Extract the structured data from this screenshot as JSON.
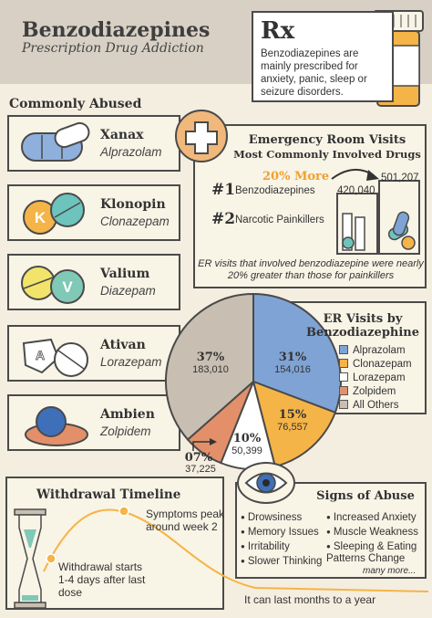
{
  "header": {
    "title": "Benzodiazepines",
    "subtitle": "Prescription Drug Addiction",
    "rx_symbol": "Rx",
    "rx_text": "Benzodiazepines are mainly prescribed for anxiety, panic, sleep or seizure disorders."
  },
  "common": {
    "title": "Commonly Abused",
    "drugs": [
      {
        "name": "Xanax",
        "generic": "Alprazolam"
      },
      {
        "name": "Klonopin",
        "generic": "Clonazepam"
      },
      {
        "name": "Valium",
        "generic": "Diazepam"
      },
      {
        "name": "Ativan",
        "generic": "Lorazepam"
      },
      {
        "name": "Ambien",
        "generic": "Zolpidem"
      }
    ],
    "pill_letters": {
      "klonopin": "K",
      "valium": "V",
      "ativan": "A"
    }
  },
  "er": {
    "title": "Emergency Room Visits",
    "subtitle": "Most Commonly Involved Drugs",
    "more_label": "20% More",
    "rank1": "#1",
    "rank1_label": "Benzodiazepines",
    "rank2": "#2",
    "rank2_label": "Narcotic Painkillers",
    "bar_small_value": "420,040",
    "bar_large_value": "501,207",
    "note": "ER visits that involved benzodiazepine were nearly 20% greater than those for painkillers"
  },
  "pie": {
    "title": "ER Visits by Benzodiazephine",
    "slices": [
      {
        "name": "Alprazolam",
        "pct_label": "31%",
        "count_label": "154,016",
        "value": 154016,
        "color": "#7fa3d4"
      },
      {
        "name": "Clonazepam",
        "pct_label": "15%",
        "count_label": "76,557",
        "value": 76557,
        "color": "#f5b447"
      },
      {
        "name": "Lorazepam",
        "pct_label": "10%",
        "count_label": "50,399",
        "value": 50399,
        "color": "#ffffff"
      },
      {
        "name": "Zolpidem",
        "pct_label": "07%",
        "count_label": "37,225",
        "value": 37225,
        "color": "#e3906a"
      },
      {
        "name": "All Others",
        "pct_label": "37%",
        "count_label": "183,010",
        "value": 183010,
        "color": "#c8bfb2"
      }
    ]
  },
  "withdrawal": {
    "title": "Withdrawal Timeline",
    "peak_text": "Symptoms peak around week 2",
    "start_text": "Withdrawal starts 1-4 days after last dose",
    "months_text": "It can last months to a year"
  },
  "abuse": {
    "title": "Signs of Abuse",
    "signs_left": [
      "Drowsiness",
      "Memory Issues",
      "Irritability",
      "Slower Thinking"
    ],
    "signs_right": [
      "Increased Anxiety",
      "Muscle Weakness",
      "Sleeping & Eating Patterns Change"
    ],
    "many_more": "many more..."
  },
  "colors": {
    "header_bg": "#d8d0c4",
    "page_bg": "#f4eee0",
    "accent_orange": "#f0a030",
    "blue": "#7fa3d4",
    "teal": "#6cc4bc",
    "yellow": "#f2e36a",
    "red": "#d8623a"
  },
  "icons": [
    "rx-icon",
    "pill-bottle-icon",
    "medical-cross-icon",
    "eye-icon",
    "hourglass-icon",
    "arrow-icon"
  ]
}
